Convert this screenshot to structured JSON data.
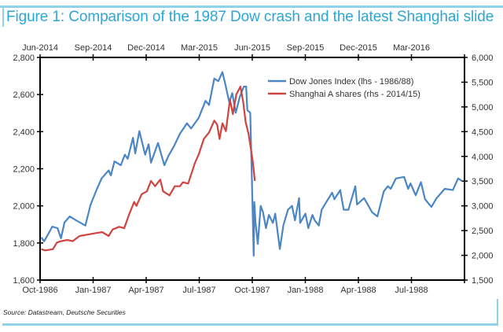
{
  "title": "Figure 1: Comparison of the 1987 Dow crash and the latest Shanghai slide",
  "source": "Source: Datastream, Deutsche Securities",
  "chart_data": {
    "type": "line",
    "title": "Figure 1: Comparison of the 1987 Dow crash and the latest Shanghai slide",
    "grid": false,
    "legend_position": "top-right",
    "x_bottom": {
      "range": [
        "1986-10-01",
        "1988-10-01"
      ],
      "ticks": [
        "Oct-1986",
        "Jan-1987",
        "Apr-1987",
        "Jul-1987",
        "Oct-1987",
        "Jan-1988",
        "Apr-1988",
        "Jul-1988"
      ]
    },
    "x_top": {
      "range": [
        "2014-06-01",
        "2016-06-01"
      ],
      "ticks": [
        "Jun-2014",
        "Sep-2014",
        "Dec-2014",
        "Mar-2015",
        "Jun-2015",
        "Sep-2015",
        "Dec-2015",
        "Mar-2016"
      ]
    },
    "y_left": {
      "range": [
        1600,
        2800
      ],
      "ticks": [
        "1,600",
        "1,800",
        "2,000",
        "2,200",
        "2,400",
        "2,600",
        "2,800"
      ]
    },
    "y_right": {
      "range": [
        1500,
        6000
      ],
      "ticks": [
        "1,500",
        "2,000",
        "2,500",
        "3,000",
        "3,500",
        "4,000",
        "4,500",
        "5,000",
        "5,500",
        "6,000"
      ]
    },
    "series": [
      {
        "name": "Dow Jones Index (lhs - 1986/88)",
        "axis": "left-bottom",
        "color": "#4a86c5",
        "x": [
          "1986-10-03",
          "1986-10-08",
          "1986-10-22",
          "1986-10-31",
          "1986-11-06",
          "1986-11-12",
          "1986-11-21",
          "1986-12-02",
          "1986-12-18",
          "1986-12-27",
          "1987-01-06",
          "1987-01-15",
          "1987-01-27",
          "1987-01-31",
          "1987-02-06",
          "1987-02-17",
          "1987-02-24",
          "1987-03-01",
          "1987-03-10",
          "1987-03-14",
          "1987-03-21",
          "1987-03-31",
          "1987-04-06",
          "1987-04-10",
          "1987-04-22",
          "1987-05-03",
          "1987-05-10",
          "1987-05-19",
          "1987-05-30",
          "1987-06-11",
          "1987-06-18",
          "1987-07-01",
          "1987-07-13",
          "1987-07-19",
          "1987-07-28",
          "1987-08-04",
          "1987-08-11",
          "1987-08-16",
          "1987-08-23",
          "1987-08-28",
          "1987-09-03",
          "1987-09-10",
          "1987-09-17",
          "1987-09-21",
          "1987-09-23",
          "1987-09-28",
          "1987-09-30",
          "1987-10-04",
          "1987-10-05",
          "1987-10-07",
          "1987-10-11",
          "1987-10-16",
          "1987-10-20",
          "1987-10-25",
          "1987-10-30",
          "1987-11-06",
          "1987-11-10",
          "1987-11-18",
          "1987-11-24",
          "1987-12-02",
          "1987-12-09",
          "1987-12-14",
          "1987-12-21",
          "1987-12-23",
          "1988-01-01",
          "1988-01-06",
          "1988-01-13",
          "1988-01-17",
          "1988-01-24",
          "1988-01-29",
          "1988-02-09",
          "1988-02-16",
          "1988-02-20",
          "1988-03-01",
          "1988-03-07",
          "1988-03-15",
          "1988-03-27",
          "1988-03-30",
          "1988-04-11",
          "1988-04-25",
          "1988-05-04",
          "1988-05-15",
          "1988-05-22",
          "1988-05-27",
          "1988-06-05",
          "1988-06-19",
          "1988-06-26",
          "1988-06-30",
          "1988-07-09",
          "1988-07-18",
          "1988-07-25",
          "1988-08-05",
          "1988-08-14",
          "1988-08-28",
          "1988-09-11",
          "1988-09-20",
          "1988-09-27"
        ],
        "y": [
          1830,
          1809,
          1888,
          1880,
          1825,
          1910,
          1943,
          1922,
          1894,
          2007,
          2085,
          2148,
          2191,
          2164,
          2240,
          2219,
          2276,
          2254,
          2367,
          2283,
          2403,
          2276,
          2332,
          2233,
          2339,
          2219,
          2269,
          2318,
          2389,
          2445,
          2417,
          2473,
          2566,
          2544,
          2686,
          2672,
          2721,
          2657,
          2558,
          2608,
          2502,
          2587,
          2643,
          2643,
          2516,
          2502,
          2248,
          1731,
          2021,
          1910,
          1795,
          2000,
          1965,
          1880,
          1951,
          1908,
          1958,
          1767,
          1894,
          1979,
          2000,
          1922,
          2042,
          1908,
          1958,
          1880,
          1951,
          1922,
          1894,
          1979,
          2036,
          2071,
          2036,
          2085,
          1979,
          1979,
          2106,
          2007,
          2042,
          1965,
          1943,
          2078,
          2106,
          2092,
          2148,
          2156,
          2092,
          2121,
          2057,
          2128,
          2036,
          1994,
          2042,
          2092,
          2085,
          2148,
          2134
        ]
      },
      {
        "name": "Shanghai A shares (rhs - 2014/15)",
        "axis": "right-top",
        "color": "#cf4440",
        "x": [
          "2014-06-03",
          "2014-06-10",
          "2014-06-23",
          "2014-06-30",
          "2014-07-07",
          "2014-07-18",
          "2014-07-27",
          "2014-08-08",
          "2014-08-21",
          "2014-09-02",
          "2014-09-16",
          "2014-09-27",
          "2014-10-04",
          "2014-10-15",
          "2014-10-24",
          "2014-11-01",
          "2014-11-10",
          "2014-11-14",
          "2014-11-23",
          "2014-12-02",
          "2014-12-09",
          "2014-12-16",
          "2014-12-25",
          "2014-12-30",
          "2015-01-10",
          "2015-01-19",
          "2015-01-28",
          "2015-02-02",
          "2015-02-11",
          "2015-02-23",
          "2015-03-01",
          "2015-03-10",
          "2015-03-19",
          "2015-03-28",
          "2015-04-02",
          "2015-04-06",
          "2015-04-11",
          "2015-04-17",
          "2015-04-24",
          "2015-04-29",
          "2015-05-05",
          "2015-05-12",
          "2015-05-17",
          "2015-05-21",
          "2015-05-26",
          "2015-06-02",
          "2015-06-06"
        ],
        "y": [
          2125,
          2100,
          2125,
          2259,
          2285,
          2311,
          2285,
          2391,
          2418,
          2443,
          2470,
          2391,
          2523,
          2576,
          2550,
          2815,
          3080,
          3000,
          3238,
          3292,
          3504,
          3397,
          3530,
          3292,
          3213,
          3397,
          3397,
          3477,
          3451,
          3874,
          4033,
          4351,
          4485,
          4723,
          4644,
          4351,
          4669,
          4510,
          5146,
          4855,
          5253,
          5412,
          5094,
          4696,
          4458,
          3928,
          3504
        ]
      }
    ]
  }
}
